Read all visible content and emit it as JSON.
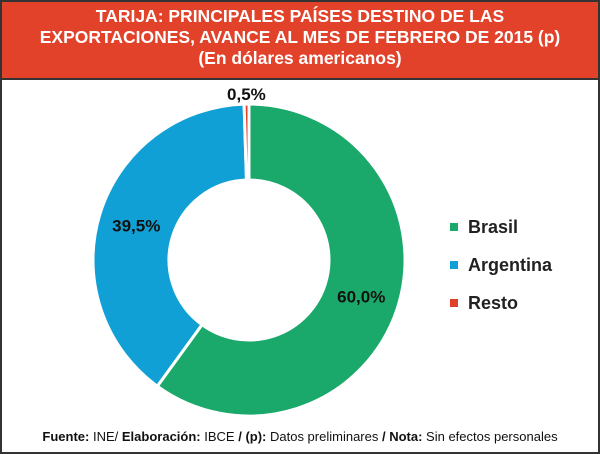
{
  "chart_data": {
    "type": "pie",
    "variant": "donut",
    "title": [
      "TARIJA: PRINCIPALES PAÍSES DESTINO DE LAS",
      "EXPORTACIONES, AVANCE AL MES DE FEBRERO DE 2015 (p)",
      "(En dólares americanos)"
    ],
    "categories": [
      "Brasil",
      "Argentina",
      "Resto"
    ],
    "values": [
      60.0,
      39.5,
      0.5
    ],
    "data_labels": [
      "60,0%",
      "39,5%",
      "0,5%"
    ],
    "colors": [
      "#1aa96b",
      "#10a0d6",
      "#e0402c"
    ],
    "legend_position": "right"
  },
  "footer": {
    "fuente_label": "Fuente:",
    "fuente_value": " INE/ ",
    "elab_label": "Elaboración:",
    "elab_value": " IBCE ",
    "p_label": "/ (p):",
    "p_value": " Datos preliminares ",
    "nota_label": "/ Nota:",
    "nota_value": " Sin efectos personales"
  }
}
